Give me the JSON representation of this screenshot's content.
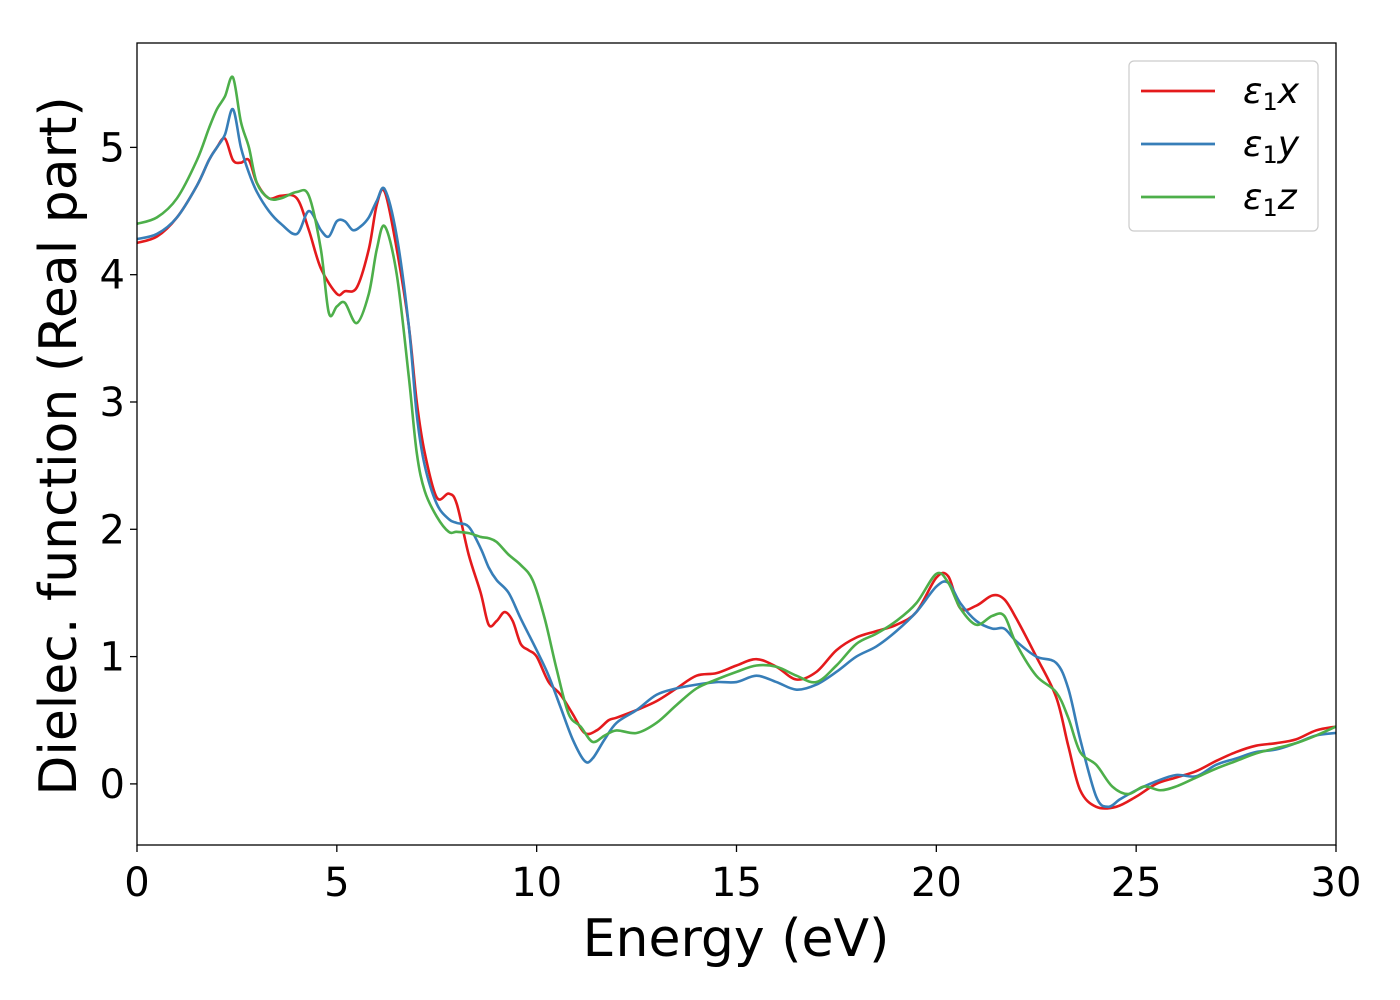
{
  "chart_data": {
    "type": "line",
    "title": "",
    "xlabel": "Energy (eV)",
    "ylabel": "Dielec. function (Real part)",
    "xlim": [
      0,
      30
    ],
    "ylim": [
      -0.48,
      5.82
    ],
    "xticks": [
      0,
      5,
      10,
      15,
      20,
      25,
      30
    ],
    "yticks": [
      0,
      1,
      2,
      3,
      4,
      5
    ],
    "grid": false,
    "legend_position": "top-right",
    "series": [
      {
        "name": "ε1x",
        "label_main": "ε",
        "label_sub": "1",
        "label_tail": "x",
        "color": "#e41a1c",
        "x": [
          0,
          0.5,
          1,
          1.5,
          1.8,
          2,
          2.2,
          2.4,
          2.6,
          2.8,
          3,
          3.3,
          3.6,
          4,
          4.3,
          4.6,
          5,
          5.2,
          5.5,
          5.8,
          6,
          6.2,
          6.5,
          6.8,
          7,
          7.2,
          7.5,
          7.8,
          8,
          8.3,
          8.6,
          8.8,
          9,
          9.2,
          9.4,
          9.6,
          9.8,
          10,
          10.3,
          10.6,
          10.9,
          11.2,
          11.5,
          11.8,
          12,
          12.5,
          13,
          13.5,
          14,
          14.5,
          15,
          15.5,
          16,
          16.5,
          17,
          17.5,
          18,
          18.5,
          19,
          19.5,
          20,
          20.3,
          20.6,
          21,
          21.4,
          21.7,
          22,
          22.5,
          23,
          23.3,
          23.6,
          24,
          24.5,
          25,
          25.5,
          26,
          26.5,
          27,
          27.5,
          28,
          28.5,
          29,
          29.5,
          30
        ],
        "y": [
          4.25,
          4.3,
          4.45,
          4.7,
          4.9,
          5.0,
          5.07,
          4.9,
          4.88,
          4.9,
          4.72,
          4.6,
          4.62,
          4.6,
          4.35,
          4.05,
          3.85,
          3.87,
          3.9,
          4.2,
          4.55,
          4.65,
          4.2,
          3.6,
          3.0,
          2.6,
          2.25,
          2.28,
          2.2,
          1.8,
          1.5,
          1.25,
          1.28,
          1.35,
          1.28,
          1.1,
          1.05,
          1.0,
          0.8,
          0.7,
          0.55,
          0.4,
          0.42,
          0.5,
          0.52,
          0.58,
          0.65,
          0.75,
          0.85,
          0.87,
          0.93,
          0.98,
          0.92,
          0.82,
          0.88,
          1.05,
          1.15,
          1.2,
          1.25,
          1.35,
          1.62,
          1.63,
          1.38,
          1.4,
          1.48,
          1.45,
          1.3,
          1.0,
          0.68,
          0.3,
          -0.05,
          -0.18,
          -0.18,
          -0.1,
          0.0,
          0.05,
          0.1,
          0.18,
          0.25,
          0.3,
          0.32,
          0.35,
          0.42,
          0.45
        ]
      },
      {
        "name": "ε1y",
        "label_main": "ε",
        "label_sub": "1",
        "label_tail": "y",
        "color": "#377eb8",
        "x": [
          0,
          0.5,
          1,
          1.5,
          1.8,
          2,
          2.2,
          2.4,
          2.6,
          2.8,
          3,
          3.3,
          3.6,
          4,
          4.3,
          4.6,
          4.8,
          5,
          5.2,
          5.4,
          5.6,
          5.8,
          6,
          6.2,
          6.5,
          6.8,
          7,
          7.2,
          7.5,
          7.8,
          8,
          8.3,
          8.6,
          8.8,
          9,
          9.3,
          9.6,
          10,
          10.3,
          10.6,
          10.9,
          11.2,
          11.4,
          11.7,
          12,
          12.5,
          13,
          13.5,
          14,
          14.5,
          15,
          15.5,
          16,
          16.5,
          17,
          17.5,
          18,
          18.5,
          19,
          19.5,
          20,
          20.3,
          20.6,
          21,
          21.4,
          21.7,
          22,
          22.5,
          23,
          23.3,
          23.6,
          24,
          24.3,
          24.6,
          25,
          25.5,
          26,
          26.5,
          27,
          27.5,
          28,
          28.5,
          29,
          29.5,
          30
        ],
        "y": [
          4.28,
          4.32,
          4.45,
          4.7,
          4.9,
          5.0,
          5.1,
          5.3,
          5.0,
          4.8,
          4.65,
          4.5,
          4.4,
          4.32,
          4.5,
          4.35,
          4.3,
          4.42,
          4.42,
          4.35,
          4.38,
          4.45,
          4.58,
          4.67,
          4.3,
          3.6,
          2.9,
          2.5,
          2.2,
          2.08,
          2.05,
          2.02,
          1.85,
          1.7,
          1.6,
          1.5,
          1.3,
          1.05,
          0.85,
          0.6,
          0.35,
          0.18,
          0.2,
          0.35,
          0.48,
          0.58,
          0.7,
          0.75,
          0.78,
          0.8,
          0.8,
          0.85,
          0.8,
          0.74,
          0.78,
          0.88,
          1.0,
          1.08,
          1.2,
          1.35,
          1.55,
          1.58,
          1.42,
          1.28,
          1.22,
          1.22,
          1.12,
          1.0,
          0.95,
          0.75,
          0.35,
          -0.1,
          -0.18,
          -0.12,
          -0.05,
          0.02,
          0.07,
          0.06,
          0.15,
          0.2,
          0.25,
          0.27,
          0.32,
          0.38,
          0.4
        ]
      },
      {
        "name": "ε1z",
        "label_main": "ε",
        "label_sub": "1",
        "label_tail": "z",
        "color": "#4daf4a",
        "x": [
          0,
          0.5,
          1,
          1.5,
          1.8,
          2,
          2.2,
          2.4,
          2.6,
          2.8,
          3,
          3.3,
          3.6,
          4,
          4.3,
          4.6,
          4.8,
          5,
          5.2,
          5.5,
          5.8,
          6,
          6.2,
          6.5,
          6.8,
          7,
          7.2,
          7.5,
          7.8,
          8,
          8.3,
          8.6,
          8.8,
          9,
          9.3,
          9.6,
          9.9,
          10.2,
          10.5,
          10.8,
          11.1,
          11.4,
          11.7,
          12,
          12.5,
          13,
          13.5,
          14,
          14.5,
          15,
          15.5,
          16,
          16.5,
          17,
          17.5,
          18,
          18.5,
          19,
          19.5,
          20,
          20.3,
          20.6,
          21,
          21.4,
          21.7,
          22,
          22.5,
          23,
          23.3,
          23.6,
          24,
          24.4,
          24.8,
          25.2,
          25.6,
          26,
          26.5,
          27,
          27.5,
          28,
          28.5,
          29,
          29.5,
          30
        ],
        "y": [
          4.4,
          4.45,
          4.6,
          4.9,
          5.15,
          5.3,
          5.4,
          5.55,
          5.2,
          5.0,
          4.72,
          4.6,
          4.6,
          4.65,
          4.62,
          4.2,
          3.7,
          3.75,
          3.78,
          3.62,
          3.85,
          4.2,
          4.38,
          4.0,
          3.2,
          2.6,
          2.3,
          2.1,
          1.98,
          1.98,
          1.97,
          1.94,
          1.93,
          1.9,
          1.8,
          1.72,
          1.6,
          1.3,
          0.9,
          0.55,
          0.45,
          0.33,
          0.38,
          0.42,
          0.4,
          0.48,
          0.62,
          0.75,
          0.82,
          0.88,
          0.93,
          0.92,
          0.85,
          0.8,
          0.93,
          1.1,
          1.18,
          1.28,
          1.42,
          1.65,
          1.58,
          1.38,
          1.25,
          1.32,
          1.32,
          1.1,
          0.85,
          0.72,
          0.52,
          0.25,
          0.15,
          -0.02,
          -0.08,
          -0.02,
          -0.05,
          -0.02,
          0.05,
          0.12,
          0.18,
          0.24,
          0.28,
          0.32,
          0.38,
          0.45
        ]
      }
    ]
  }
}
